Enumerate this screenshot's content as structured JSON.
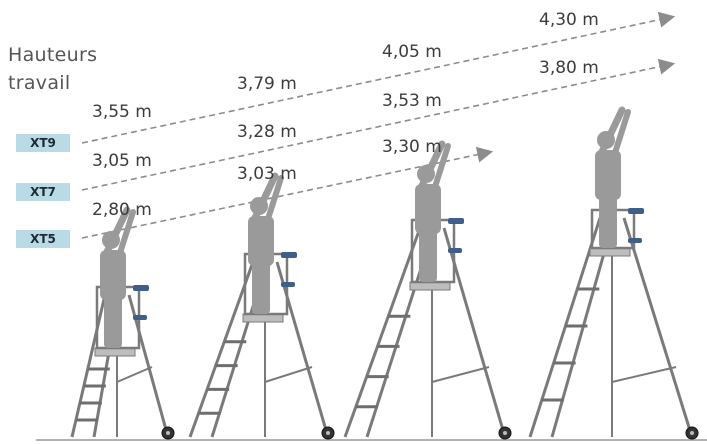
{
  "heading": {
    "line1": "Hauteurs",
    "line2": "travail"
  },
  "models": [
    {
      "name": "XT9",
      "heights": [
        "3,55 m",
        "3,79 m",
        "4,05 m",
        "4,30 m"
      ]
    },
    {
      "name": "XT7",
      "heights": [
        "3,05 m",
        "3,28 m",
        "3,53 m",
        "3,80 m"
      ]
    },
    {
      "name": "XT5",
      "heights": [
        "2,80 m",
        "3,03 m",
        "3,30 m"
      ]
    }
  ],
  "colors": {
    "badge_bg": "#b9dbe5",
    "dashed_line": "#8c8c8c",
    "figure": "#9a9a9a",
    "ladder_frame": "#7a7a7a",
    "grip": "#3f5e8a"
  }
}
